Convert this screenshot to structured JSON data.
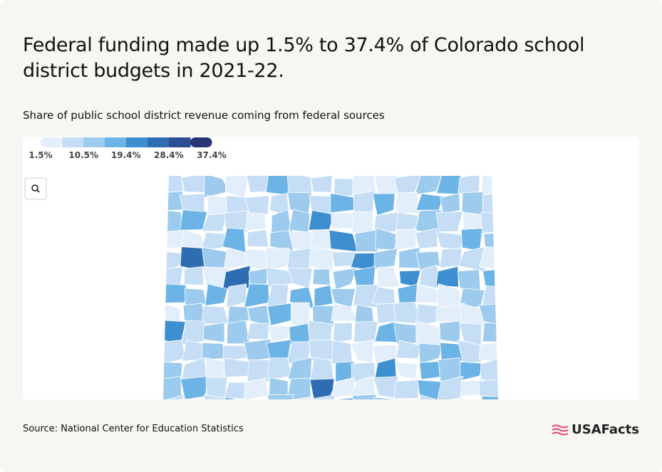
{
  "header": {
    "title": "Federal funding made up 1.5% to 37.4% of Colorado school district budgets in 2021-22.",
    "subtitle": "Share of public school district revenue coming from federal sources"
  },
  "legend": {
    "colors": [
      "#e3eefb",
      "#c5def5",
      "#9ccbee",
      "#6cb4e6",
      "#3d8fd0",
      "#2f6db3",
      "#2b4d93",
      "#253575"
    ],
    "ticks": [
      {
        "value": 1.5,
        "label": "1.5%"
      },
      {
        "value": 10.5,
        "label": "10.5%"
      },
      {
        "value": 19.4,
        "label": "19.4%"
      },
      {
        "value": 28.4,
        "label": "28.4%"
      },
      {
        "value": 37.4,
        "label": "37.4%"
      }
    ]
  },
  "footer": {
    "source": "Source: National Center for Education Statistics",
    "logo": "USAFacts"
  }
}
